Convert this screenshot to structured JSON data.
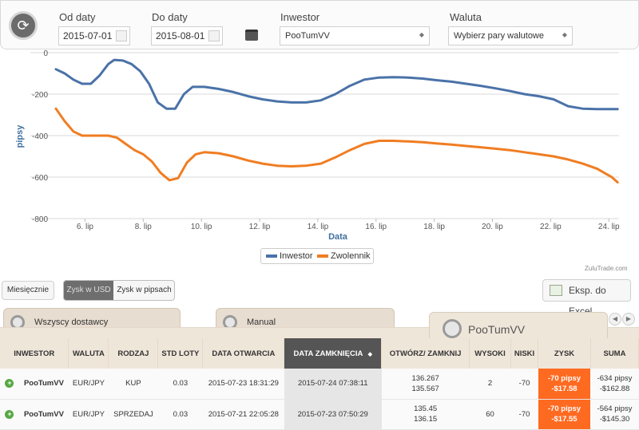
{
  "filters": {
    "from_label": "Od daty",
    "from_value": "2015-07-01",
    "to_label": "Do daty",
    "to_value": "2015-08-01",
    "investor_label": "Inwestor",
    "investor_value": "PooTumVV",
    "currency_label": "Waluta",
    "currency_value": "Wybierz pary walutowe"
  },
  "chart_data": {
    "type": "line",
    "xlabel": "Data",
    "ylabel": "pipsy",
    "ylim": [
      -800,
      0
    ],
    "y_ticks": [
      "0",
      "-200",
      "-400",
      "-600",
      "-800"
    ],
    "x_ticks": [
      "6. lip",
      "8. lip",
      "10. lip",
      "12. lip",
      "14. lip",
      "16. lip",
      "18. lip",
      "20. lip",
      "22. lip",
      "24. lip"
    ],
    "x_start_day": 5,
    "series": [
      {
        "name": "Inwestor",
        "color": "#4a72a8",
        "x": [
          5.0,
          5.3,
          5.6,
          5.9,
          6.2,
          6.5,
          6.8,
          7.0,
          7.3,
          7.6,
          7.9,
          8.2,
          8.5,
          8.8,
          9.1,
          9.4,
          9.7,
          10.1,
          10.6,
          11.1,
          11.6,
          12.1,
          12.6,
          13.1,
          13.6,
          14.1,
          14.6,
          15.1,
          15.6,
          16.1,
          16.6,
          17.1,
          17.6,
          18.1,
          18.6,
          19.1,
          19.6,
          20.1,
          20.6,
          21.1,
          21.6,
          22.1,
          22.6,
          23.1,
          23.6,
          24.1,
          24.3
        ],
        "y": [
          -80,
          -100,
          -130,
          -150,
          -150,
          -110,
          -55,
          -35,
          -38,
          -55,
          -90,
          -150,
          -240,
          -270,
          -270,
          -200,
          -165,
          -165,
          -175,
          -190,
          -210,
          -225,
          -235,
          -240,
          -240,
          -230,
          -200,
          -160,
          -130,
          -120,
          -118,
          -120,
          -125,
          -133,
          -140,
          -150,
          -160,
          -172,
          -185,
          -200,
          -210,
          -225,
          -258,
          -270,
          -272,
          -272,
          -272
        ]
      },
      {
        "name": "Zwolennik",
        "color": "#f07d22",
        "x": [
          5.0,
          5.3,
          5.6,
          5.9,
          6.2,
          6.5,
          6.8,
          7.1,
          7.4,
          7.7,
          8.0,
          8.3,
          8.6,
          8.9,
          9.2,
          9.5,
          9.8,
          10.1,
          10.6,
          11.1,
          11.6,
          12.1,
          12.6,
          13.1,
          13.6,
          14.1,
          14.6,
          15.1,
          15.6,
          16.1,
          16.6,
          17.1,
          17.6,
          18.1,
          18.6,
          19.1,
          19.6,
          20.1,
          20.6,
          21.1,
          21.6,
          22.1,
          22.6,
          23.1,
          23.6,
          24.1,
          24.3
        ],
        "y": [
          -270,
          -330,
          -380,
          -400,
          -400,
          -400,
          -400,
          -410,
          -440,
          -470,
          -490,
          -525,
          -580,
          -615,
          -605,
          -530,
          -490,
          -480,
          -485,
          -500,
          -520,
          -535,
          -545,
          -548,
          -545,
          -535,
          -505,
          -470,
          -440,
          -425,
          -425,
          -428,
          -432,
          -438,
          -443,
          -450,
          -456,
          -463,
          -470,
          -480,
          -490,
          -500,
          -515,
          -535,
          -560,
          -600,
          -625
        ]
      }
    ],
    "legend": "bottom-center",
    "grid": true
  },
  "legend_labels": {
    "investor": "Inwestor",
    "follower": "Zwolennik"
  },
  "watermark": "ZuluTrade.com",
  "controls": {
    "monthly": "Miesięcznie",
    "profit_usd": "Zysk w USD",
    "profit_pips": "Zysk w pipsach",
    "excel": "Eksp. do Excel"
  },
  "tabs": [
    "Wszyscy dostawcy",
    "Manual",
    "PooTumVV"
  ],
  "table": {
    "headers": [
      "INWESTOR",
      "WALUTA",
      "RODZAJ",
      "STD LOTY",
      "DATA OTWARCIA",
      "DATA ZAMKNIĘCIA",
      "OTWÓRZ/ ZAMKNIJ",
      "WYSOKI",
      "NISKI",
      "ZYSK",
      "SUMA"
    ],
    "sort_indicator": "◆",
    "rows": [
      {
        "investor": "PooTumVV",
        "currency": "EUR/JPY",
        "type": "KUP",
        "lots": "0.03",
        "open": "2015-07-23 18:31:29",
        "close": "2015-07-24 07:38:11",
        "open_price": "136.267",
        "close_price": "135.567",
        "high": "2",
        "low": "-70",
        "profit_pips": "-70 pipsy",
        "profit_usd": "-$17.58",
        "sum_pips": "-634 pipsy",
        "sum_usd": "-$162.88"
      },
      {
        "investor": "PooTumVV",
        "currency": "EUR/JPY",
        "type": "SPRZEDAJ",
        "lots": "0.03",
        "open": "2015-07-21 22:05:28",
        "close": "2015-07-23 07:50:29",
        "open_price": "135.45",
        "close_price": "136.15",
        "high": "60",
        "low": "-70",
        "profit_pips": "-70 pipsy",
        "profit_usd": "-$17.55",
        "sum_pips": "-564 pipsy",
        "sum_usd": "-$145.30"
      }
    ]
  }
}
